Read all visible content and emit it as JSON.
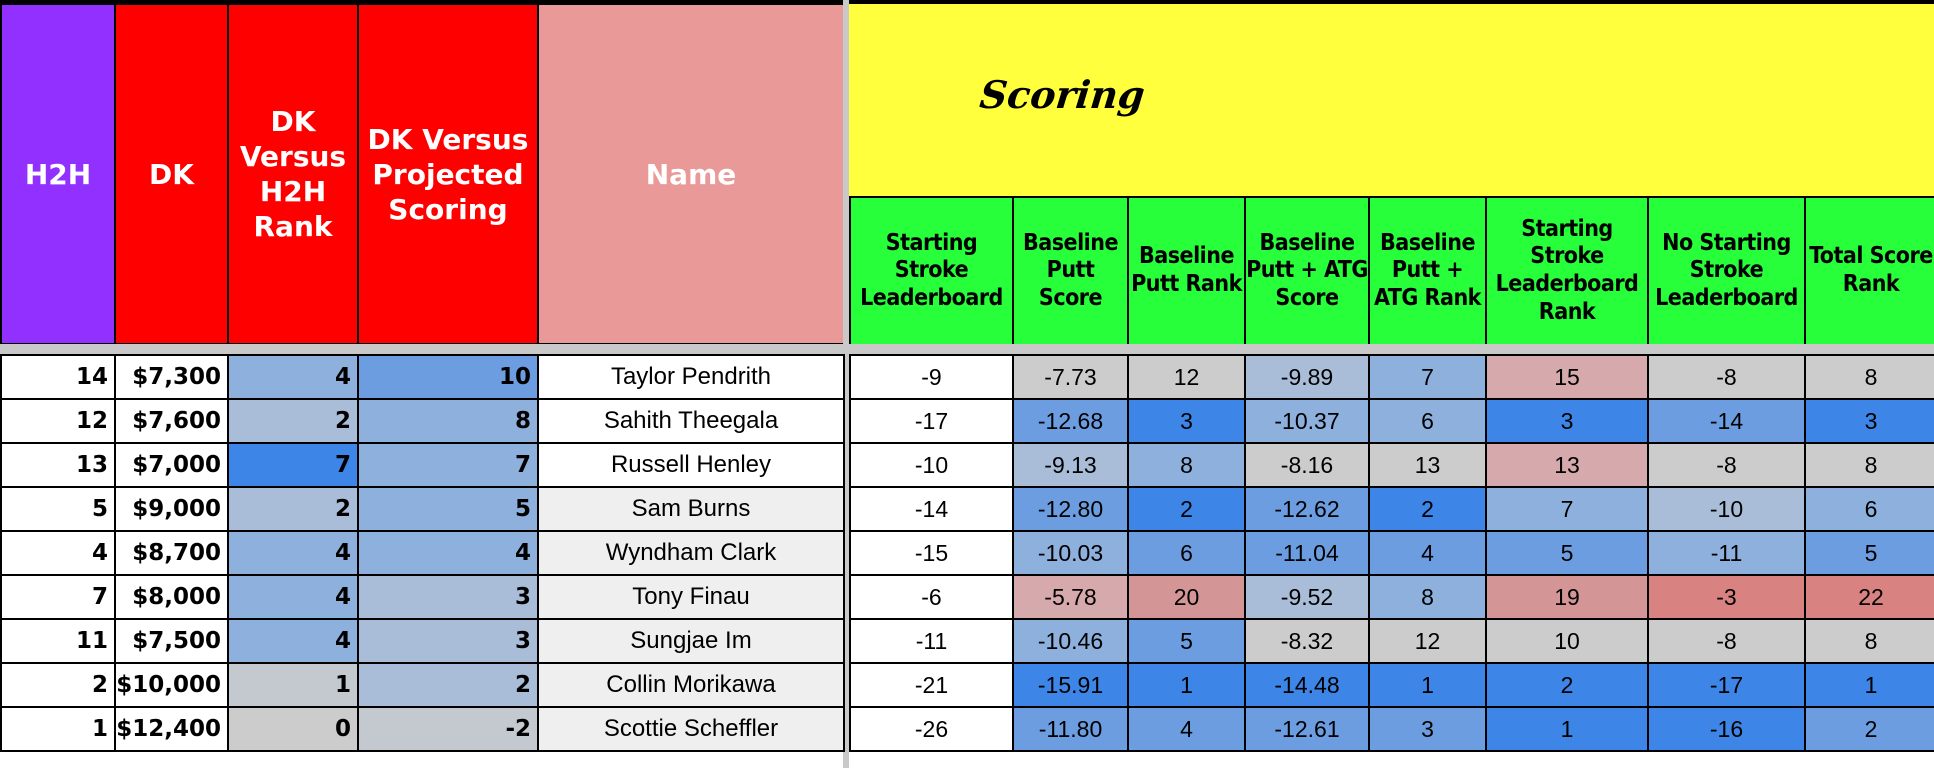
{
  "left_headers": [
    "H2H",
    "DK",
    "DK Versus H2H Rank",
    "DK Versus Projected Scoring",
    "Name"
  ],
  "section_title": "Scoring",
  "right_headers": [
    "Starting Stroke Leaderboard",
    "Baseline Putt Score",
    "Baseline Putt Rank",
    "Baseline Putt + ATG Score",
    "Baseline Putt + ATG Rank",
    "Starting Stroke Leaderboard Rank",
    "No Starting Stroke Leaderboard",
    "Total Score Rank"
  ],
  "rows": [
    {
      "h2h": "14",
      "dk": "$7,300",
      "dk_h2h": "4",
      "dk_proj": "10",
      "name": "Taylor Pendrith",
      "ssl": "-9",
      "bps": "-7.73",
      "bpr": "12",
      "bpas": "-9.89",
      "bpar": "7",
      "sslr": "15",
      "nssl": "-8",
      "tsr": "8"
    },
    {
      "h2h": "12",
      "dk": "$7,600",
      "dk_h2h": "2",
      "dk_proj": "8",
      "name": "Sahith Theegala",
      "ssl": "-17",
      "bps": "-12.68",
      "bpr": "3",
      "bpas": "-10.37",
      "bpar": "6",
      "sslr": "3",
      "nssl": "-14",
      "tsr": "3"
    },
    {
      "h2h": "13",
      "dk": "$7,000",
      "dk_h2h": "7",
      "dk_proj": "7",
      "name": "Russell Henley",
      "ssl": "-10",
      "bps": "-9.13",
      "bpr": "8",
      "bpas": "-8.16",
      "bpar": "13",
      "sslr": "13",
      "nssl": "-8",
      "tsr": "8"
    },
    {
      "h2h": "5",
      "dk": "$9,000",
      "dk_h2h": "2",
      "dk_proj": "5",
      "name": "Sam Burns",
      "ssl": "-14",
      "bps": "-12.80",
      "bpr": "2",
      "bpas": "-12.62",
      "bpar": "2",
      "sslr": "7",
      "nssl": "-10",
      "tsr": "6"
    },
    {
      "h2h": "4",
      "dk": "$8,700",
      "dk_h2h": "4",
      "dk_proj": "4",
      "name": "Wyndham Clark",
      "ssl": "-15",
      "bps": "-10.03",
      "bpr": "6",
      "bpas": "-11.04",
      "bpar": "4",
      "sslr": "5",
      "nssl": "-11",
      "tsr": "5"
    },
    {
      "h2h": "7",
      "dk": "$8,000",
      "dk_h2h": "4",
      "dk_proj": "3",
      "name": "Tony Finau",
      "ssl": "-6",
      "bps": "-5.78",
      "bpr": "20",
      "bpas": "-9.52",
      "bpar": "8",
      "sslr": "19",
      "nssl": "-3",
      "tsr": "22"
    },
    {
      "h2h": "11",
      "dk": "$7,500",
      "dk_h2h": "4",
      "dk_proj": "3",
      "name": "Sungjae Im",
      "ssl": "-11",
      "bps": "-10.46",
      "bpr": "5",
      "bpas": "-8.32",
      "bpar": "12",
      "sslr": "10",
      "nssl": "-8",
      "tsr": "8"
    },
    {
      "h2h": "2",
      "dk": "$10,000",
      "dk_h2h": "1",
      "dk_proj": "2",
      "name": "Collin Morikawa",
      "ssl": "-21",
      "bps": "-15.91",
      "bpr": "1",
      "bpas": "-14.48",
      "bpar": "1",
      "sslr": "2",
      "nssl": "-17",
      "tsr": "1"
    },
    {
      "h2h": "1",
      "dk": "$12,400",
      "dk_h2h": "0",
      "dk_proj": "-2",
      "name": "Scottie Scheffler",
      "ssl": "-26",
      "bps": "-11.80",
      "bpr": "4",
      "bpas": "-12.61",
      "bpar": "3",
      "sslr": "1",
      "nssl": "-16",
      "tsr": "2"
    }
  ],
  "colors": {
    "h2h_header": "#9130ff",
    "dk_header": "#ff0000",
    "name_header": "#ea9999",
    "scoring_banner": "#ffff3e",
    "scoring_header": "#26ff3a"
  }
}
